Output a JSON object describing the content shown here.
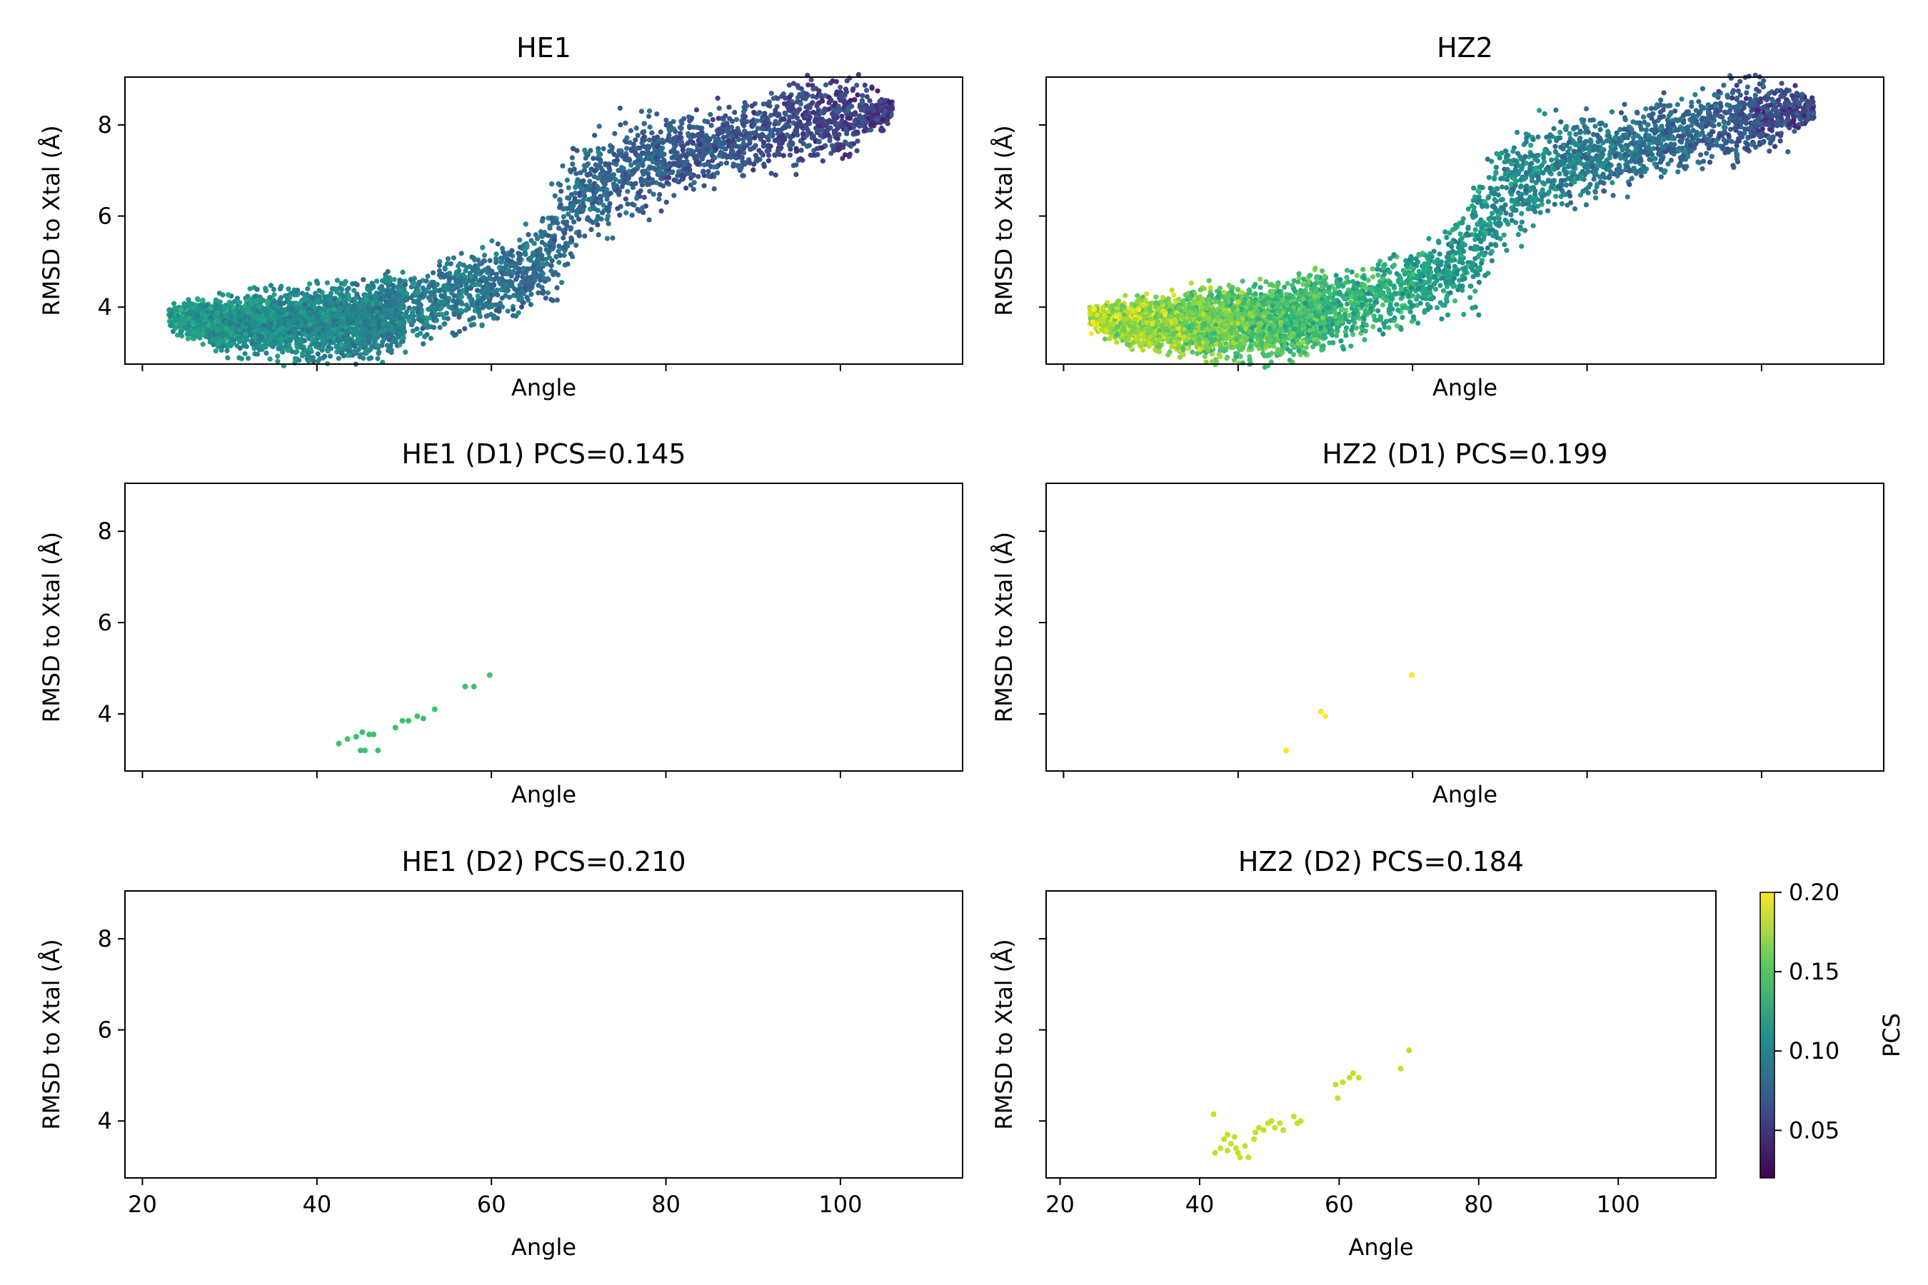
{
  "colorbar": {
    "label": "PCS",
    "min": 0.02,
    "max": 0.2,
    "ticks": [
      "0.05",
      "0.10",
      "0.15",
      "0.20"
    ]
  },
  "chart_data": [
    {
      "type": "scatter",
      "title": "HE1",
      "xlabel": "Angle",
      "ylabel": "RMSD to Xtal (Å)",
      "xlim": [
        18,
        114
      ],
      "ylim": [
        2.75,
        9.05
      ],
      "yticks": [
        "4",
        "6",
        "8"
      ],
      "xticks": [],
      "show_x_ticklabels": false,
      "show_y_ticklabels": true,
      "density": {
        "points": 5200,
        "seed": 11,
        "pcs_mean": 0.105,
        "pcs_spread": 0.025,
        "pcs_slope": -0.0008
      }
    },
    {
      "type": "scatter",
      "title": "HZ2",
      "xlabel": "Angle",
      "ylabel": "RMSD to Xtal (Å)",
      "xlim": [
        18,
        114
      ],
      "ylim": [
        2.75,
        9.05
      ],
      "yticks": [
        "4",
        "6",
        "8"
      ],
      "xticks": [],
      "show_x_ticklabels": false,
      "show_y_ticklabels": false,
      "density": {
        "points": 5200,
        "seed": 23,
        "pcs_mean": 0.155,
        "pcs_spread": 0.03,
        "pcs_slope": -0.0015
      }
    },
    {
      "type": "scatter",
      "title": "HE1 (D1) PCS=0.145",
      "xlabel": "Angle",
      "ylabel": "RMSD to Xtal (Å)",
      "xlim": [
        18,
        114
      ],
      "ylim": [
        2.75,
        9.05
      ],
      "yticks": [
        "4",
        "6",
        "8"
      ],
      "xticks": [],
      "show_x_ticklabels": false,
      "show_y_ticklabels": true,
      "color_value": 0.145,
      "points": [
        [
          42.5,
          3.35
        ],
        [
          43.5,
          3.45
        ],
        [
          44.5,
          3.5
        ],
        [
          45.2,
          3.6
        ],
        [
          45.0,
          3.2
        ],
        [
          46.0,
          3.55
        ],
        [
          46.5,
          3.55
        ],
        [
          45.5,
          3.2
        ],
        [
          47.0,
          3.2
        ],
        [
          49.0,
          3.7
        ],
        [
          49.8,
          3.85
        ],
        [
          50.5,
          3.85
        ],
        [
          51.5,
          3.95
        ],
        [
          52.2,
          3.9
        ],
        [
          53.5,
          4.1
        ],
        [
          57.0,
          4.6
        ],
        [
          58.0,
          4.6
        ],
        [
          59.8,
          4.85
        ]
      ]
    },
    {
      "type": "scatter",
      "title": "HZ2 (D1) PCS=0.199",
      "xlabel": "Angle",
      "ylabel": "RMSD to Xtal (Å)",
      "xlim": [
        18,
        114
      ],
      "ylim": [
        2.75,
        9.05
      ],
      "yticks": [
        "4",
        "6",
        "8"
      ],
      "xticks": [],
      "show_x_ticklabels": false,
      "show_y_ticklabels": false,
      "color_value": 0.199,
      "points": [
        [
          45.5,
          3.2
        ],
        [
          49.5,
          4.05
        ],
        [
          50.0,
          3.95
        ],
        [
          59.9,
          4.85
        ]
      ]
    },
    {
      "type": "scatter",
      "title": "HE1 (D2) PCS=0.210",
      "xlabel": "Angle",
      "ylabel": "RMSD to Xtal (Å)",
      "xlim": [
        18,
        114
      ],
      "ylim": [
        2.75,
        9.05
      ],
      "yticks": [
        "4",
        "6",
        "8"
      ],
      "xticks": [
        "20",
        "40",
        "60",
        "80",
        "100"
      ],
      "show_x_ticklabels": true,
      "show_y_ticklabels": true,
      "color_value": 0.21,
      "points": []
    },
    {
      "type": "scatter",
      "title": "HZ2 (D2) PCS=0.184",
      "xlabel": "Angle",
      "ylabel": "RMSD to Xtal (Å)",
      "xlim": [
        18,
        114
      ],
      "ylim": [
        2.75,
        9.05
      ],
      "yticks": [
        "4",
        "6",
        "8"
      ],
      "xticks": [
        "20",
        "40",
        "60",
        "80",
        "100"
      ],
      "show_x_ticklabels": true,
      "show_y_ticklabels": false,
      "color_value": 0.184,
      "points": [
        [
          42.0,
          4.15
        ],
        [
          42.2,
          3.3
        ],
        [
          43.0,
          3.4
        ],
        [
          43.5,
          3.6
        ],
        [
          44.0,
          3.7
        ],
        [
          44.0,
          3.35
        ],
        [
          44.5,
          3.5
        ],
        [
          45.0,
          3.65
        ],
        [
          45.2,
          3.4
        ],
        [
          45.5,
          3.3
        ],
        [
          45.8,
          3.2
        ],
        [
          46.5,
          3.45
        ],
        [
          47.0,
          3.2
        ],
        [
          47.8,
          3.6
        ],
        [
          48.0,
          3.75
        ],
        [
          48.5,
          3.85
        ],
        [
          49.2,
          3.8
        ],
        [
          49.8,
          3.95
        ],
        [
          50.3,
          4.0
        ],
        [
          50.8,
          3.85
        ],
        [
          51.5,
          3.95
        ],
        [
          52.0,
          3.8
        ],
        [
          53.5,
          4.1
        ],
        [
          54.0,
          3.95
        ],
        [
          54.5,
          4.0
        ],
        [
          59.5,
          4.8
        ],
        [
          59.8,
          4.5
        ],
        [
          60.5,
          4.85
        ],
        [
          61.5,
          4.95
        ],
        [
          62.0,
          5.05
        ],
        [
          62.8,
          4.95
        ],
        [
          68.8,
          5.15
        ],
        [
          70.0,
          5.55
        ]
      ]
    }
  ]
}
